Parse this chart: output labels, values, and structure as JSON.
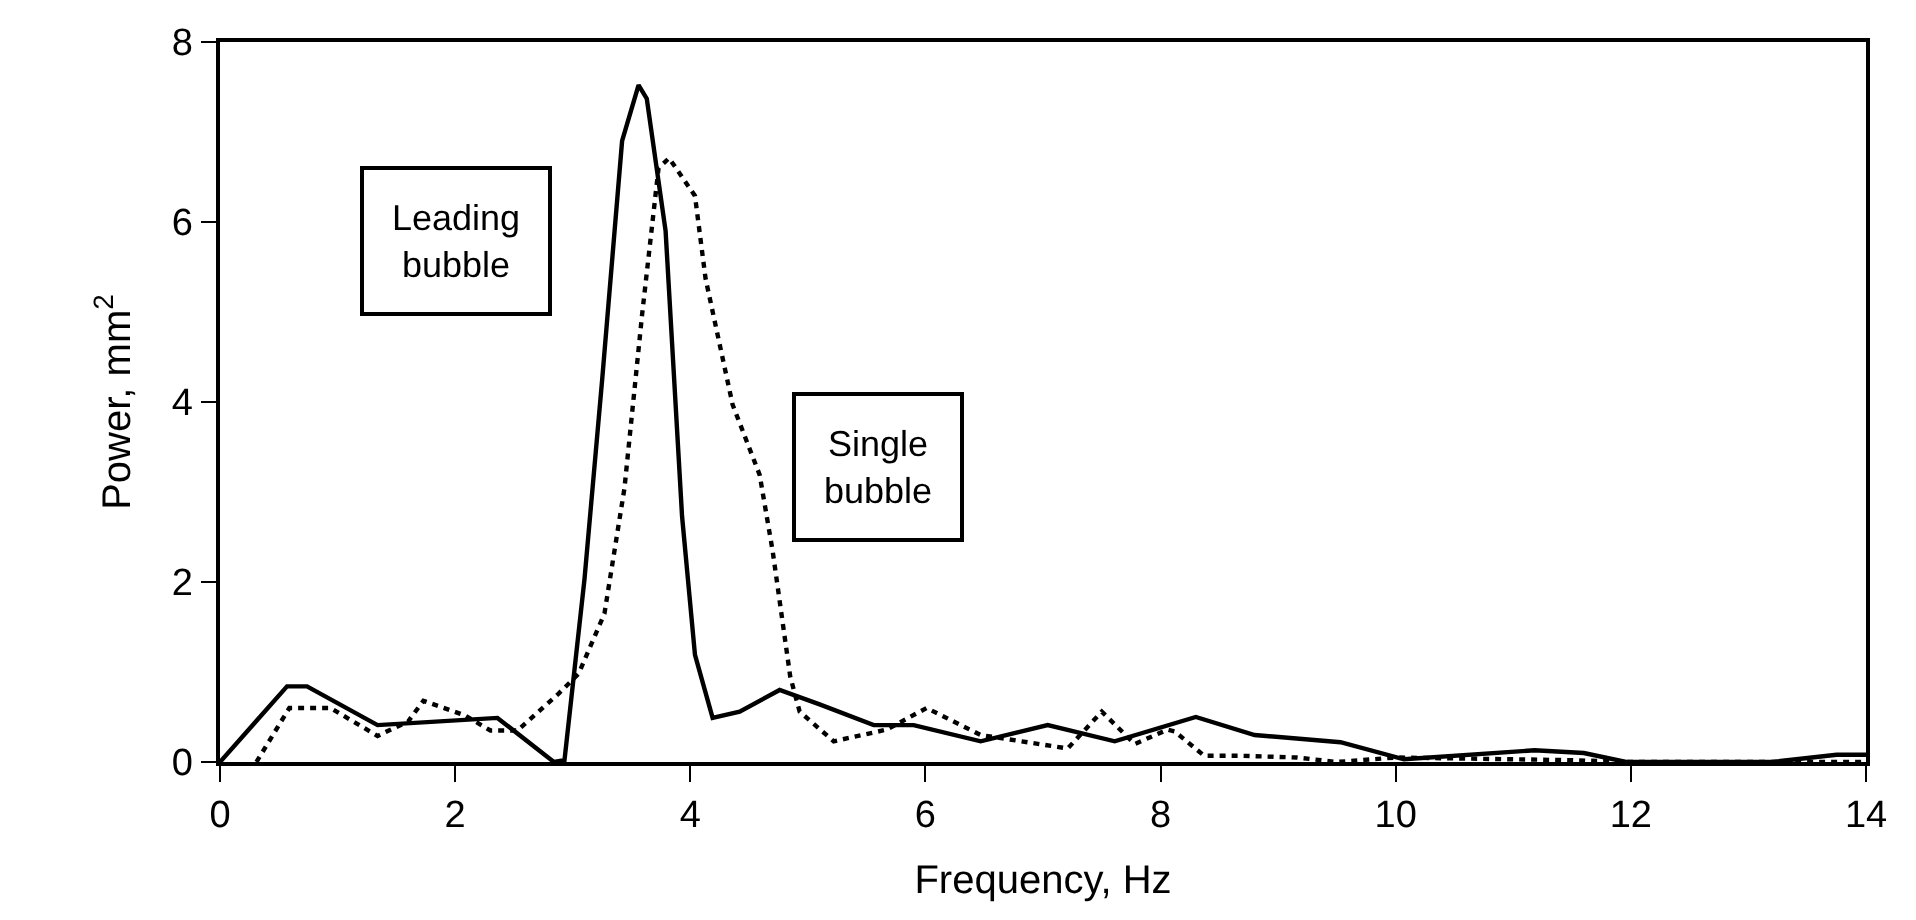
{
  "chart_data": {
    "type": "line",
    "xlabel": "Frequency, Hz",
    "ylabel": "Power, mm$^{2}$",
    "xlim": [
      0,
      14
    ],
    "xticks": [
      0,
      2,
      4,
      6,
      8,
      10,
      12,
      14
    ],
    "ylim": [
      0,
      8
    ],
    "yticks": [
      0,
      2,
      4,
      6,
      8
    ],
    "marker": "none",
    "series": [
      {
        "color": "#000000",
        "line_style": "solid",
        "x": [
          0,
          0.57,
          0.74,
          1.34,
          2.36,
          2.84,
          2.93,
          3.1,
          3.25,
          3.42,
          3.56,
          3.63,
          3.79,
          3.93,
          4.04,
          4.19,
          4.42,
          4.76,
          5.1,
          5.56,
          5.9,
          6.47,
          7.04,
          7.61,
          8.3,
          8.8,
          9.53,
          10.07,
          11.18,
          11.6,
          11.96,
          13.2,
          13.75,
          14
        ],
        "values": [
          0,
          0.84,
          0.84,
          0.41,
          0.49,
          0,
          0.02,
          2.03,
          4.24,
          6.9,
          7.52,
          7.37,
          5.9,
          2.73,
          1.19,
          0.49,
          0.56,
          0.8,
          0.64,
          0.41,
          0.41,
          0.23,
          0.41,
          0.23,
          0.5,
          0.3,
          0.22,
          0.03,
          0.13,
          0.1,
          0,
          0,
          0.08,
          0.08
        ]
      },
      {
        "color": "#000000",
        "line_style": "dotted",
        "x": [
          0.31,
          0.59,
          0.94,
          1.34,
          1.6,
          1.73,
          2.08,
          2.3,
          2.53,
          2.88,
          3.05,
          3.27,
          3.44,
          3.59,
          3.73,
          3.82,
          4.04,
          4.13,
          4.36,
          4.59,
          4.7,
          4.85,
          4.93,
          5.22,
          5.67,
          6.01,
          6.24,
          6.47,
          7.21,
          7.5,
          7.78,
          8.06,
          8.12,
          8.37,
          8.67,
          9.16,
          9.5,
          10,
          11.5,
          12,
          13.3,
          14
        ],
        "values": [
          0,
          0.6,
          0.6,
          0.29,
          0.45,
          0.68,
          0.52,
          0.35,
          0.35,
          0.76,
          0.98,
          1.65,
          3.04,
          4.97,
          6.6,
          6.71,
          6.29,
          5.37,
          3.97,
          3.19,
          2.35,
          0.95,
          0.56,
          0.23,
          0.36,
          0.6,
          0.45,
          0.3,
          0.15,
          0.56,
          0.2,
          0.36,
          0.34,
          0.07,
          0.07,
          0.05,
          0,
          0.05,
          0.02,
          0,
          0,
          0
        ]
      }
    ],
    "annotations": [
      "Leading\nbubble",
      "Single\nbubble"
    ]
  }
}
